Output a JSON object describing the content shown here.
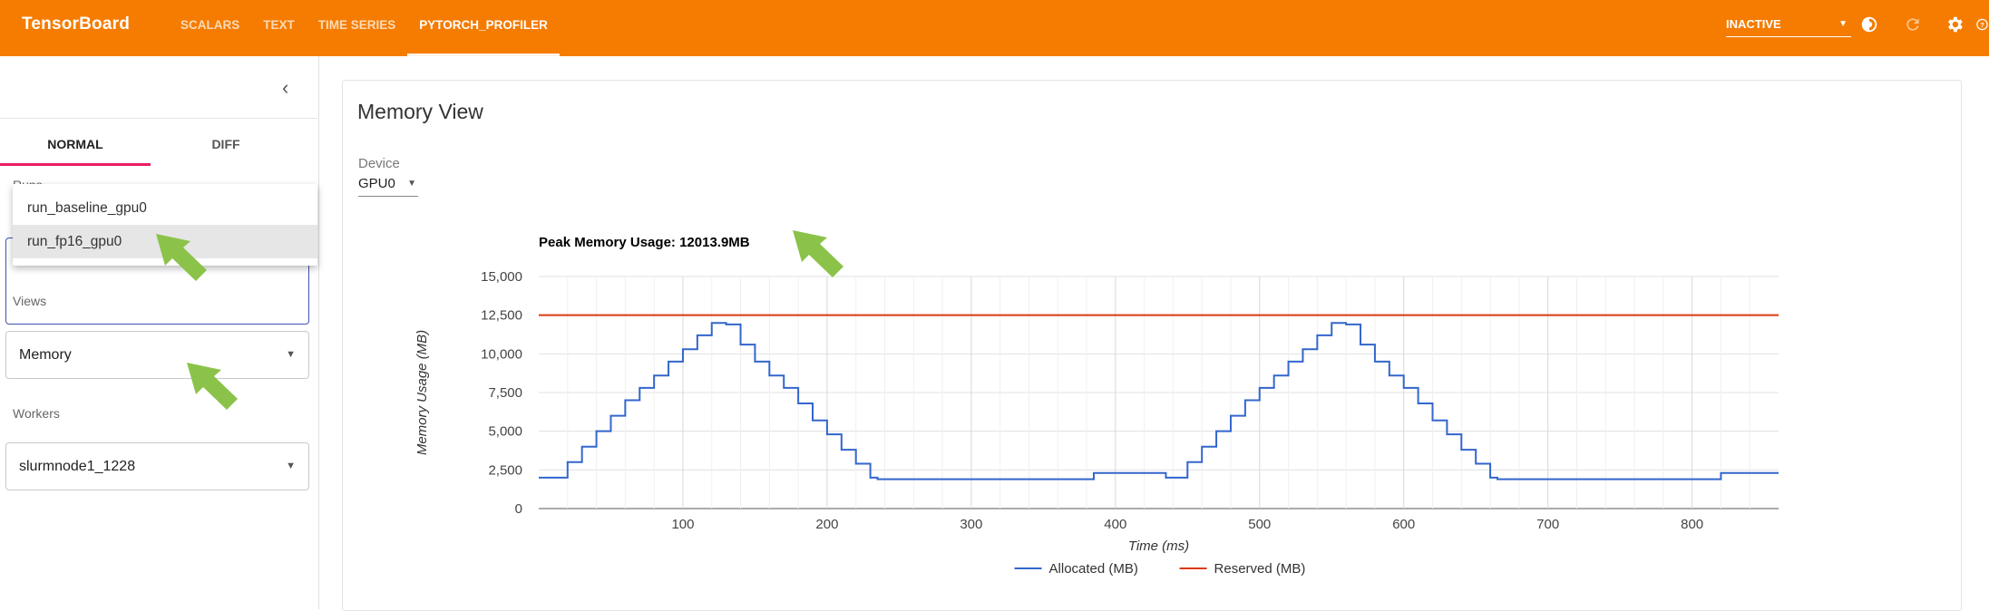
{
  "app": {
    "brand": "TensorBoard",
    "nav": [
      "SCALARS",
      "TEXT",
      "TIME SERIES",
      "PYTORCH_PROFILER"
    ],
    "active_nav": "PYTORCH_PROFILER",
    "status_select": "INACTIVE",
    "icons": [
      "dark-mode-icon",
      "refresh-icon",
      "settings-icon",
      "help-icon"
    ]
  },
  "sidebar": {
    "tabs": [
      "NORMAL",
      "DIFF"
    ],
    "active_tab": "NORMAL",
    "runs_label": "Runs",
    "runs_options": [
      "run_baseline_gpu0",
      "run_fp16_gpu0"
    ],
    "runs_selected": "run_fp16_gpu0",
    "views_label": "Views",
    "views_value": "Memory",
    "workers_label": "Workers",
    "workers_value": "slurmnode1_1228"
  },
  "main": {
    "title": "Memory View",
    "device_label": "Device",
    "device_value": "GPU0"
  },
  "colors": {
    "topbar": "#f57c00",
    "accent_tab": "#e91e63",
    "allocated": "#3366cc",
    "reserved": "#dc3912",
    "arrow": "#8bc34a"
  },
  "chart_data": {
    "type": "line",
    "title": "Peak Memory Usage: 12013.9MB",
    "xlabel": "Time (ms)",
    "ylabel": "Memory Usage (MB)",
    "xlim": [
      0,
      860
    ],
    "ylim": [
      0,
      15000
    ],
    "xticks": [
      100,
      200,
      300,
      400,
      500,
      600,
      700,
      800
    ],
    "yticks": [
      0,
      2500,
      5000,
      7500,
      10000,
      12500,
      15000
    ],
    "ytick_labels": [
      "0",
      "2,500",
      "5,000",
      "7,500",
      "10,000",
      "12,500",
      "15,000"
    ],
    "legend_position": "bottom",
    "grid": true,
    "series": [
      {
        "name": "Allocated (MB)",
        "x": [
          0,
          10,
          20,
          30,
          40,
          50,
          60,
          70,
          80,
          90,
          100,
          110,
          120,
          130,
          140,
          150,
          160,
          170,
          180,
          190,
          200,
          210,
          220,
          230,
          235,
          300,
          380,
          385,
          420,
          430,
          435,
          440,
          450,
          460,
          470,
          480,
          490,
          500,
          510,
          520,
          530,
          540,
          550,
          560,
          570,
          580,
          590,
          600,
          610,
          620,
          630,
          640,
          650,
          660,
          665,
          700,
          810,
          820,
          860
        ],
        "y": [
          2000,
          2000,
          3000,
          4000,
          5000,
          6000,
          7000,
          7800,
          8600,
          9500,
          10300,
          11200,
          12000,
          11900,
          10600,
          9500,
          8600,
          7800,
          6800,
          5700,
          4800,
          3800,
          2900,
          2000,
          1900,
          1900,
          1900,
          2300,
          2300,
          2300,
          2000,
          2000,
          3000,
          4000,
          5000,
          6000,
          7000,
          7800,
          8600,
          9500,
          10300,
          11200,
          12000,
          11900,
          10600,
          9500,
          8600,
          7800,
          6800,
          5700,
          4800,
          3800,
          2900,
          2000,
          1900,
          1900,
          1900,
          2300,
          2300
        ]
      },
      {
        "name": "Reserved (MB)",
        "x": [
          0,
          860
        ],
        "y": [
          12500,
          12500
        ]
      }
    ]
  }
}
